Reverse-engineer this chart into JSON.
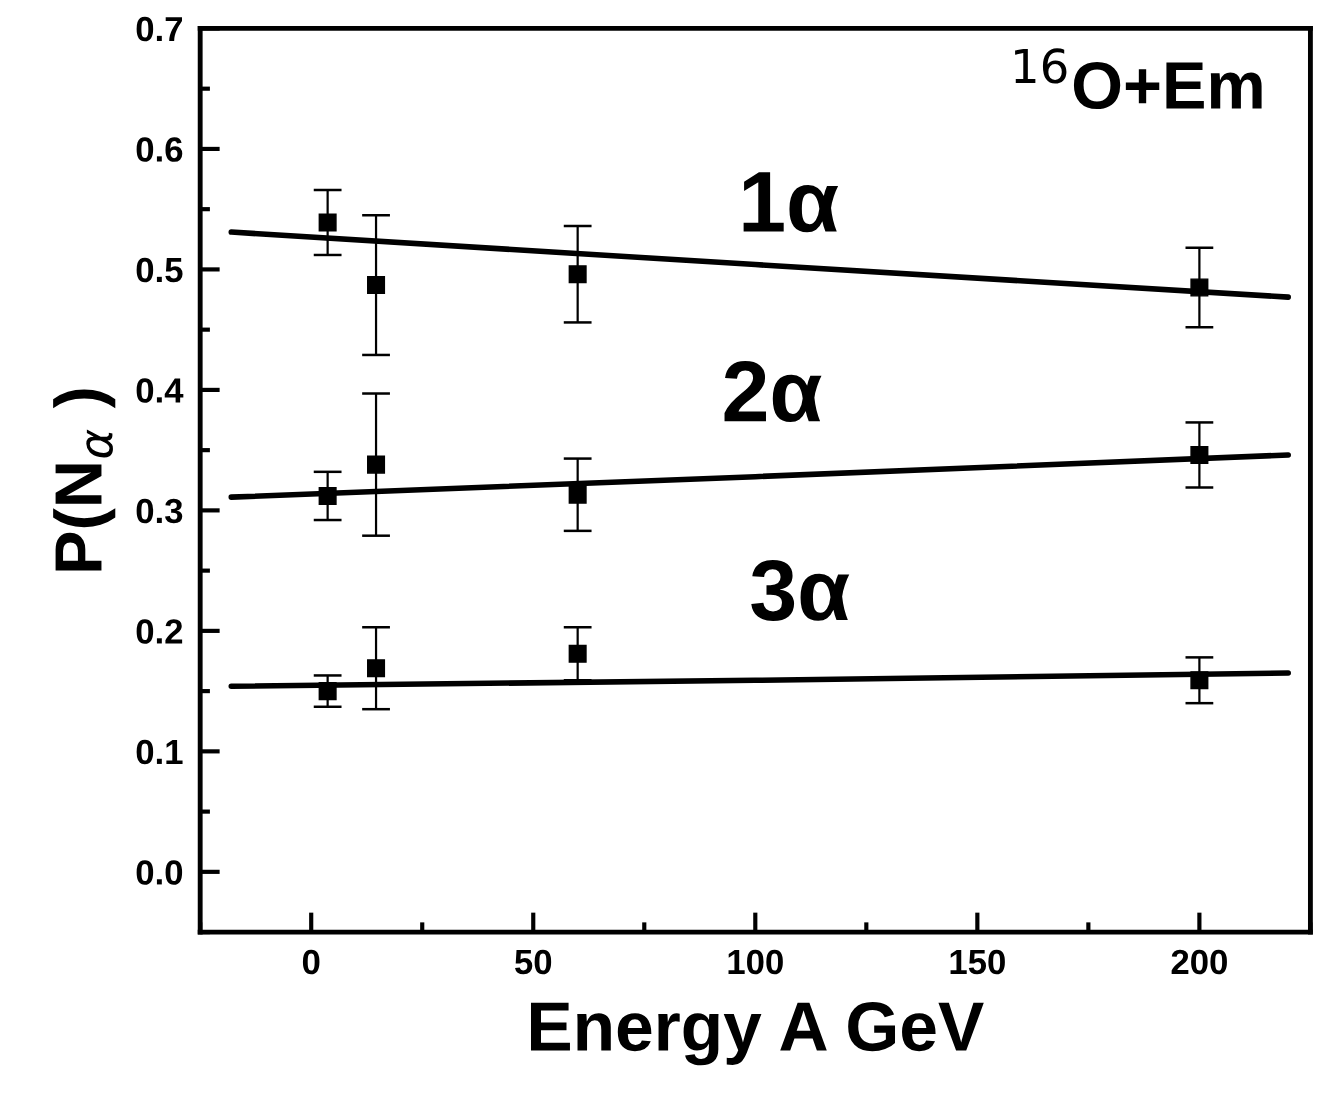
{
  "chart_data": {
    "type": "scatter",
    "xlabel": "Energy A GeV",
    "ylabel": "P(N$_{α}$ )",
    "xlim": [
      -25,
      225
    ],
    "ylim": [
      -0.05,
      0.7
    ],
    "xticks": [
      0,
      50,
      100,
      150,
      200
    ],
    "yticks": [
      {
        "value": 0.0,
        "label": "0.0"
      },
      0.1,
      0.2,
      0.3,
      0.4,
      0.5,
      0.6,
      0.7
    ],
    "grid": false,
    "legend": false,
    "marker": "square",
    "x": [
      3.7,
      14.6,
      60,
      200
    ],
    "series": [
      {
        "color": "#000000",
        "values": [
          0.539,
          0.487,
          0.496,
          0.485
        ],
        "errors": [
          0.027,
          0.058,
          0.04,
          0.033
        ]
      },
      {
        "color": "#000000",
        "values": [
          0.312,
          0.338,
          0.313,
          0.346
        ],
        "errors": [
          0.02,
          0.059,
          0.03,
          0.027
        ]
      },
      {
        "color": "#000000",
        "values": [
          0.15,
          0.169,
          0.181,
          0.159
        ],
        "errors": [
          0.013,
          0.034,
          0.022,
          0.019
        ]
      },
      {
        "type": "line",
        "color": "#000000",
        "x": [
          -18,
          100,
          220
        ],
        "values": [
          0.531,
          0.504,
          0.477
        ],
        "marker": "none"
      },
      {
        "type": "line",
        "color": "#000000",
        "x": [
          -18,
          100,
          220
        ],
        "values": [
          0.311,
          0.328,
          0.346
        ],
        "marker": "none"
      },
      {
        "type": "line",
        "color": "#000000",
        "x": [
          -18,
          100,
          220
        ],
        "values": [
          0.154,
          0.159,
          0.165
        ],
        "marker": "none"
      }
    ],
    "annotations": [
      "$^{16}$O+Em",
      "1α",
      "2α",
      "3α"
    ]
  }
}
